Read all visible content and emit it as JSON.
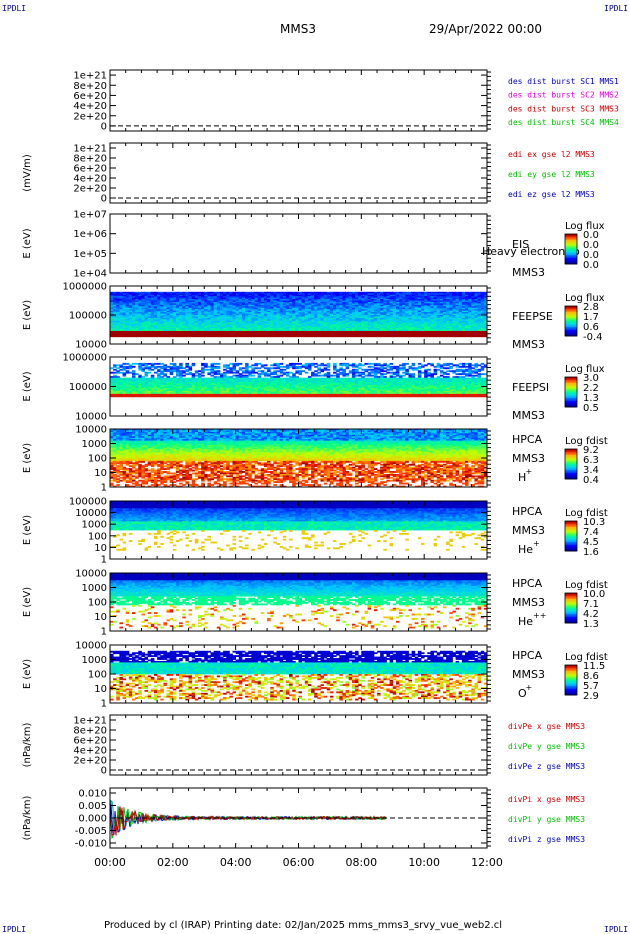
{
  "header": {
    "corner_tl": "IPDLI",
    "corner_tr": "IPDLI",
    "corner_bl": "IPDLI",
    "corner_br": "IPDLI",
    "spacecraft": "MMS3",
    "date": "29/Apr/2022 00:00"
  },
  "footer": {
    "text": "Produced by cl (IRAP)   Printing date: 02/Jan/2025   mms_mms3_srvy_vue_web2.cl"
  },
  "colors": {
    "red": "#d00000",
    "magenta": "#e000e0",
    "green": "#00c000",
    "blue": "#0000c0",
    "teal": "#00a0a0",
    "frame": "#000000"
  },
  "chart_data": [
    {
      "type": "line",
      "name": "panel-des-dist",
      "ylabel": "",
      "ytick_labels": [
        "1e+21",
        "8e+20",
        "6e+20",
        "4e+20",
        "2e+20",
        "0"
      ],
      "ylim": [
        -1e+20,
        1.1e+21
      ],
      "dashed_zero_line": true,
      "legend": [
        {
          "label": "des dist burst SC1 MMS1",
          "color": "#0000c0"
        },
        {
          "label": "des dist burst SC2 MMS2",
          "color": "#e000e0"
        },
        {
          "label": "des dist burst SC3 MMS3",
          "color": "#d00000"
        },
        {
          "label": "des dist burst SC4 MMS4",
          "color": "#00c000"
        }
      ]
    },
    {
      "type": "line",
      "name": "panel-edi-e",
      "ylabel": "(mV/m)",
      "ytick_labels": [
        "1e+21",
        "8e+20",
        "6e+20",
        "4e+20",
        "2e+20",
        "0"
      ],
      "ylim": [
        -1e+20,
        1.1e+21
      ],
      "dashed_zero_line": true,
      "legend": [
        {
          "label": "edi ex gse l2 MMS3",
          "color": "#d00000"
        },
        {
          "label": "edi ey gse l2 MMS3",
          "color": "#00c000"
        },
        {
          "label": "edi ez gse l2 MMS3",
          "color": "#0000c0"
        }
      ]
    },
    {
      "type": "heatmap",
      "name": "panel-eis",
      "ylabel": "E (eV)",
      "log_y": true,
      "ytick_labels": [
        "1e+07",
        "1e+06",
        "1e+05",
        "1e+04"
      ],
      "instrument": "EIS",
      "overlay": "Heavy electron to",
      "spacecraft": "MMS3",
      "colorbar_title": "Log flux",
      "colorbar_ticks": [
        "0.0",
        "0.0",
        "0.0",
        "0.0"
      ],
      "empty": true
    },
    {
      "type": "heatmap",
      "name": "panel-feepse",
      "ylabel": "E (eV)",
      "log_y": true,
      "ytick_labels": [
        "1000000",
        "100000",
        "10000"
      ],
      "instrument": "FEEPSE",
      "spacecraft": "MMS3",
      "colorbar_title": "Log flux",
      "colorbar_ticks": [
        "2.8",
        "1.7",
        "0.6",
        "-0.4"
      ],
      "data_end_hour": 12
    },
    {
      "type": "heatmap",
      "name": "panel-feepsi",
      "ylabel": "E (eV)",
      "log_y": true,
      "ytick_labels": [
        "1000000",
        "100000",
        "10000"
      ],
      "instrument": "FEEPSI",
      "spacecraft": "MMS3",
      "colorbar_title": "Log flux",
      "colorbar_ticks": [
        "3.0",
        "2.2",
        "1.3",
        "0.5"
      ],
      "data_end_hour": 12
    },
    {
      "type": "heatmap",
      "name": "panel-hpca-h",
      "ylabel": "E (eV)",
      "log_y": true,
      "ytick_labels": [
        "10000",
        "1000",
        "100",
        "10",
        "1"
      ],
      "instrument": "HPCA",
      "spacecraft": "MMS3",
      "species": "H",
      "species_charge": "+",
      "colorbar_title": "Log fdist",
      "colorbar_ticks": [
        "9.2",
        "6.3",
        "3.4",
        "0.4"
      ],
      "data_end_hour": 12
    },
    {
      "type": "heatmap",
      "name": "panel-hpca-he",
      "ylabel": "E (eV)",
      "log_y": true,
      "ytick_labels": [
        "100000",
        "10000",
        "1000",
        "100",
        "10",
        "1"
      ],
      "instrument": "HPCA",
      "spacecraft": "MMS3",
      "species": "He",
      "species_charge": "+",
      "colorbar_title": "Log fdist",
      "colorbar_ticks": [
        "10.3",
        "7.4",
        "4.5",
        "1.6"
      ],
      "data_end_hour": 12
    },
    {
      "type": "heatmap",
      "name": "panel-hpca-he2",
      "ylabel": "E (eV)",
      "log_y": true,
      "ytick_labels": [
        "10000",
        "1000",
        "100",
        "10",
        "1"
      ],
      "instrument": "HPCA",
      "spacecraft": "MMS3",
      "species": "He",
      "species_charge": "++",
      "colorbar_title": "Log fdist",
      "colorbar_ticks": [
        "10.0",
        "7.1",
        "4.2",
        "1.3"
      ],
      "data_end_hour": 12
    },
    {
      "type": "heatmap",
      "name": "panel-hpca-o",
      "ylabel": "E (eV)",
      "log_y": true,
      "ytick_labels": [
        "10000",
        "1000",
        "100",
        "10",
        "1"
      ],
      "instrument": "HPCA",
      "spacecraft": "MMS3",
      "species": "O",
      "species_charge": "+",
      "colorbar_title": "Log fdist",
      "colorbar_ticks": [
        "11.5",
        "8.6",
        "5.7",
        "2.9"
      ],
      "data_end_hour": 12
    },
    {
      "type": "line",
      "name": "panel-divpe",
      "ylabel": "(nPa/km)",
      "ytick_labels": [
        "1e+21",
        "8e+20",
        "6e+20",
        "4e+20",
        "2e+20",
        "0"
      ],
      "ylim": [
        -1e+20,
        1.1e+21
      ],
      "dashed_zero_line": true,
      "legend": [
        {
          "label": "divPe x gse MMS3",
          "color": "#d00000"
        },
        {
          "label": "divPe y gse MMS3",
          "color": "#00c000"
        },
        {
          "label": "divPe z gse MMS3",
          "color": "#0000c0"
        }
      ]
    },
    {
      "type": "line",
      "name": "panel-divpi",
      "ylabel": "(nPa/km)",
      "ytick_labels": [
        "0.010",
        "0.005",
        "0.000",
        "-0.005",
        "-0.010"
      ],
      "ylim": [
        -0.012,
        0.012
      ],
      "dashed_zero_line": true,
      "data_end_hour": 8.8,
      "legend": [
        {
          "label": "divPi x gse MMS3",
          "color": "#d00000"
        },
        {
          "label": "divPi y gse MMS3",
          "color": "#00c000"
        },
        {
          "label": "divPi z gse MMS3",
          "color": "#0000c0"
        }
      ]
    }
  ],
  "xaxis": {
    "tick_labels": [
      "00:00",
      "02:00",
      "04:00",
      "06:00",
      "08:00",
      "10:00",
      "12:00"
    ],
    "xlim_hours": [
      0,
      12
    ]
  }
}
